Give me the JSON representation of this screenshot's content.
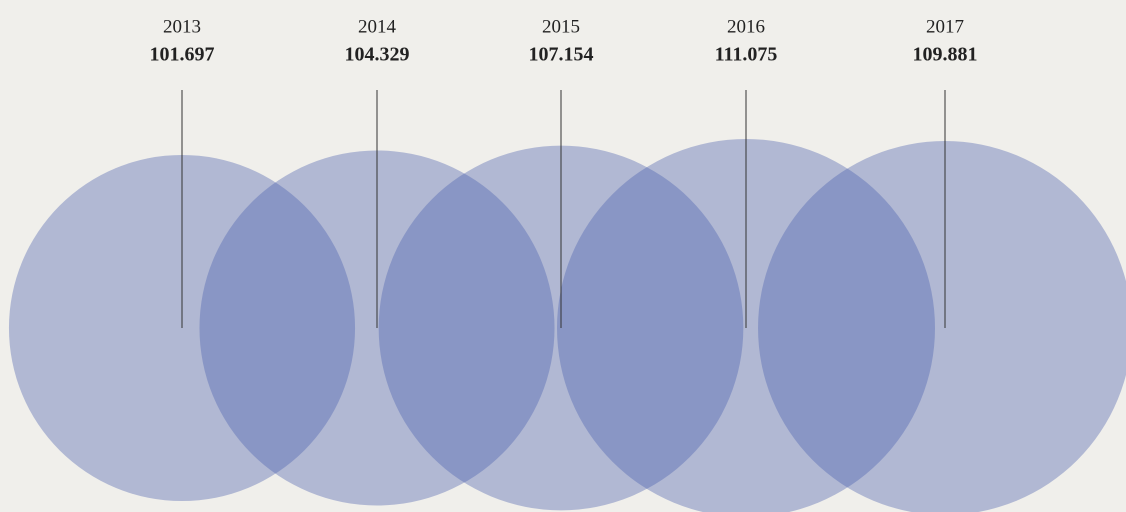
{
  "chart_data": {
    "type": "bubble",
    "categories": [
      "2013",
      "2014",
      "2015",
      "2016",
      "2017"
    ],
    "values": [
      101.697,
      104.329,
      107.154,
      111.075,
      109.881
    ],
    "color": "#4a5eae"
  }
}
